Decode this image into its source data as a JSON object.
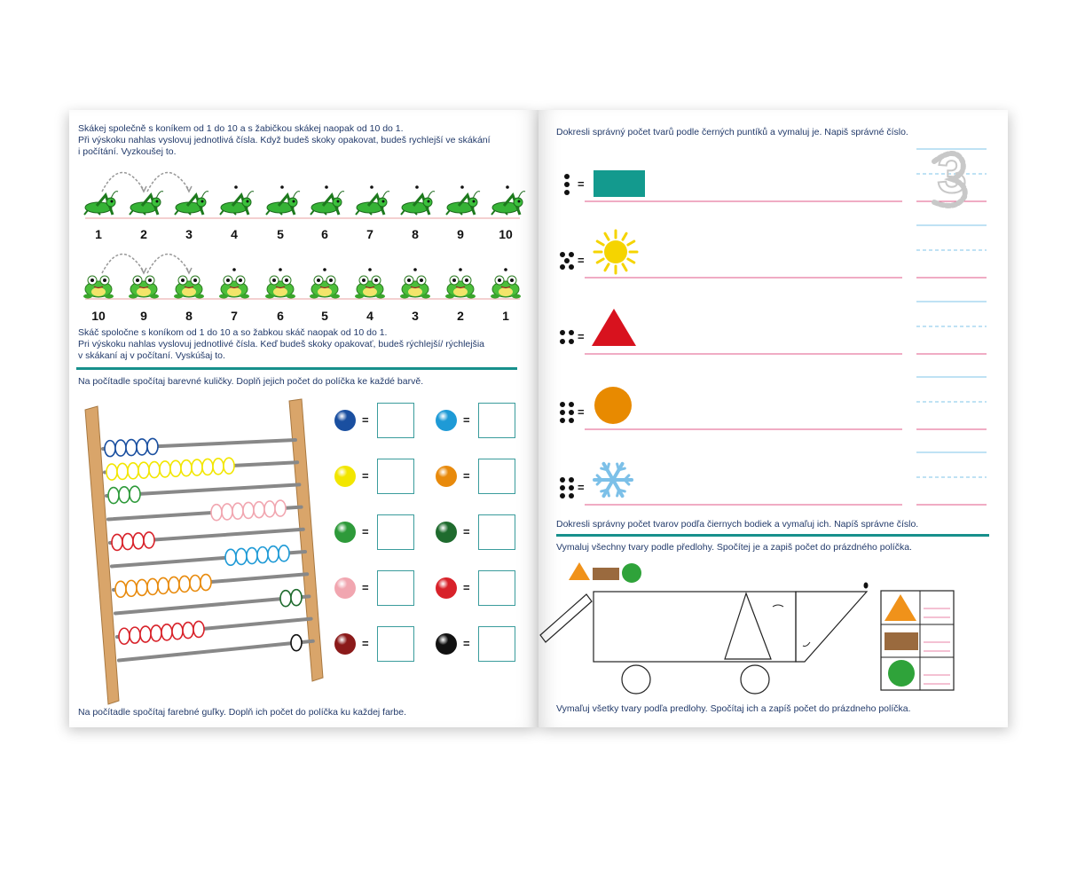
{
  "left_page": {
    "cz_instructions_top": [
      "Skákej společně s koníkem od 1 do 10 a s žabičkou skákej naopak od 10 do 1.",
      "Při výskoku nahlas vyslovuj jednotlivá čísla. Když budeš skoky opakovat, budeš rychlejší ve skákání",
      "i počítání. Vyzkoušej to."
    ],
    "grasshopper_numbers": [
      "1",
      "2",
      "3",
      "4",
      "5",
      "6",
      "7",
      "8",
      "9",
      "10"
    ],
    "frog_numbers": [
      "10",
      "9",
      "8",
      "7",
      "6",
      "5",
      "4",
      "3",
      "2",
      "1"
    ],
    "sk_instructions_top": [
      "Skáč spoločne s koníkom od 1 do 10 a so žabkou skáč naopak od 10 do 1.",
      "Pri výskoku nahlas vyslovuj jednotlivé čísla. Keď budeš skoky opakovať, budeš rýchlejší/ rýchlejšia",
      "v skákaní aj v počítaní. Vyskúšaj to."
    ],
    "cz_abacus_instruction": "Na počítadle spočítaj barevné kuličky. Doplň jejich počet do políčka ke každé barvě.",
    "sk_abacus_instruction": "Na počítadle spočítaj farebné guľky. Doplň ich počet do políčka ku každej farbe.",
    "equals_sign": "=",
    "bead_colors": [
      "#1a4fa0",
      "#1e9ad6",
      "#f2e600",
      "#e88a0c",
      "#2e9a3a",
      "#1f6b2e",
      "#f1a6b0",
      "#d8222a",
      "#8b1a1a",
      "#111111"
    ]
  },
  "right_page": {
    "cz_draw_instruction": "Dokresli správný počet tvarů podle černých puntíků a vymaluj je. Napiš správné číslo.",
    "sk_draw_instruction": "Dokresli správny počet tvarov podľa čiernych bodiek a vymaľuj ich. Napíš správne číslo.",
    "example_number": "3",
    "dot_counts": [
      3,
      5,
      4,
      6,
      6
    ],
    "shapes": [
      "rectangle-teal",
      "sun-yellow",
      "triangle-red",
      "circle-orange",
      "snowflake-blue"
    ],
    "cz_color_instruction": "Vymaluj všechny tvary podle předlohy. Spočítej je a zapiš počet do prázdného políčka.",
    "sk_color_instruction": "Vymaľuj všetky tvary podľa predlohy. Spočítaj ich a zapíš počet do prázdneho políčka.",
    "legend_colors": {
      "triangle": "#f0921a",
      "rectangle": "#9a6a3e",
      "circle": "#2fa33a"
    }
  }
}
